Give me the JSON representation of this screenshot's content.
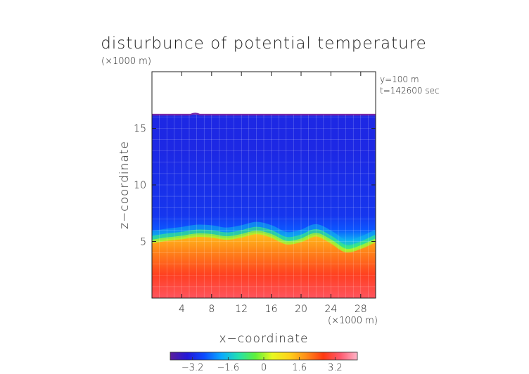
{
  "chart_data": {
    "type": "heatmap",
    "title": "disturbunce of potential temperature",
    "axis_unit_top": "(×1000 m)",
    "axis_unit_bottom": "(×1000 m)",
    "xlabel": "x−coordinate",
    "ylabel": "z−coordinate",
    "annotations": [
      "y=100  m",
      "t=142600 sec"
    ],
    "xlim": [
      0,
      30
    ],
    "ylim": [
      0,
      20
    ],
    "x_ticks": [
      4,
      8,
      12,
      16,
      20,
      24,
      28
    ],
    "x_tick_labels": [
      "4",
      "8",
      "12",
      "16",
      "20",
      "24",
      "28"
    ],
    "y_ticks": [
      5,
      10,
      15
    ],
    "y_tick_labels": [
      "5",
      "10",
      "15"
    ],
    "grid": true,
    "colorbar": {
      "vmin": -4.2,
      "vmax": 4.2,
      "ticks": [
        -3.2,
        -1.6,
        0,
        1.6,
        3.2
      ],
      "tick_labels": [
        "−3.2",
        "−1.6",
        "0",
        "1.6",
        "3.2"
      ],
      "colors": [
        "#5a1f9a",
        "#2418d8",
        "#0c4cff",
        "#0aa8ff",
        "#22e0b0",
        "#5ef03c",
        "#e8f820",
        "#ffd21a",
        "#ff8c1a",
        "#ff3a12",
        "#ff5a6e",
        "#ffb4c8"
      ]
    },
    "domain_top_km": 16.2,
    "top_layer_value": -4.0,
    "top_layer_color": "#7a2aa8",
    "interface_height_km": [
      [
        0,
        5.0
      ],
      [
        2,
        5.2
      ],
      [
        4,
        5.35
      ],
      [
        6,
        5.55
      ],
      [
        8,
        5.5
      ],
      [
        10,
        5.3
      ],
      [
        12,
        5.5
      ],
      [
        14,
        5.8
      ],
      [
        16,
        5.5
      ],
      [
        18,
        4.9
      ],
      [
        20,
        5.1
      ],
      [
        22,
        5.6
      ],
      [
        24,
        5.0
      ],
      [
        26,
        4.2
      ],
      [
        28,
        4.5
      ],
      [
        30,
        5.1
      ]
    ],
    "levels": [
      {
        "z": 0.0,
        "value": 3.2
      },
      {
        "z": 1.5,
        "value": 2.9
      },
      {
        "z": 3.0,
        "value": 2.1
      },
      {
        "z": 4.2,
        "value": 1.6
      },
      {
        "z": 5.1,
        "value": 0.6
      },
      {
        "z": 5.6,
        "value": -0.8
      },
      {
        "z": 6.3,
        "value": -1.8
      },
      {
        "z": 7.5,
        "value": -2.6
      },
      {
        "z": 9.0,
        "value": -3.0
      },
      {
        "z": 16.2,
        "value": -3.2
      }
    ]
  }
}
